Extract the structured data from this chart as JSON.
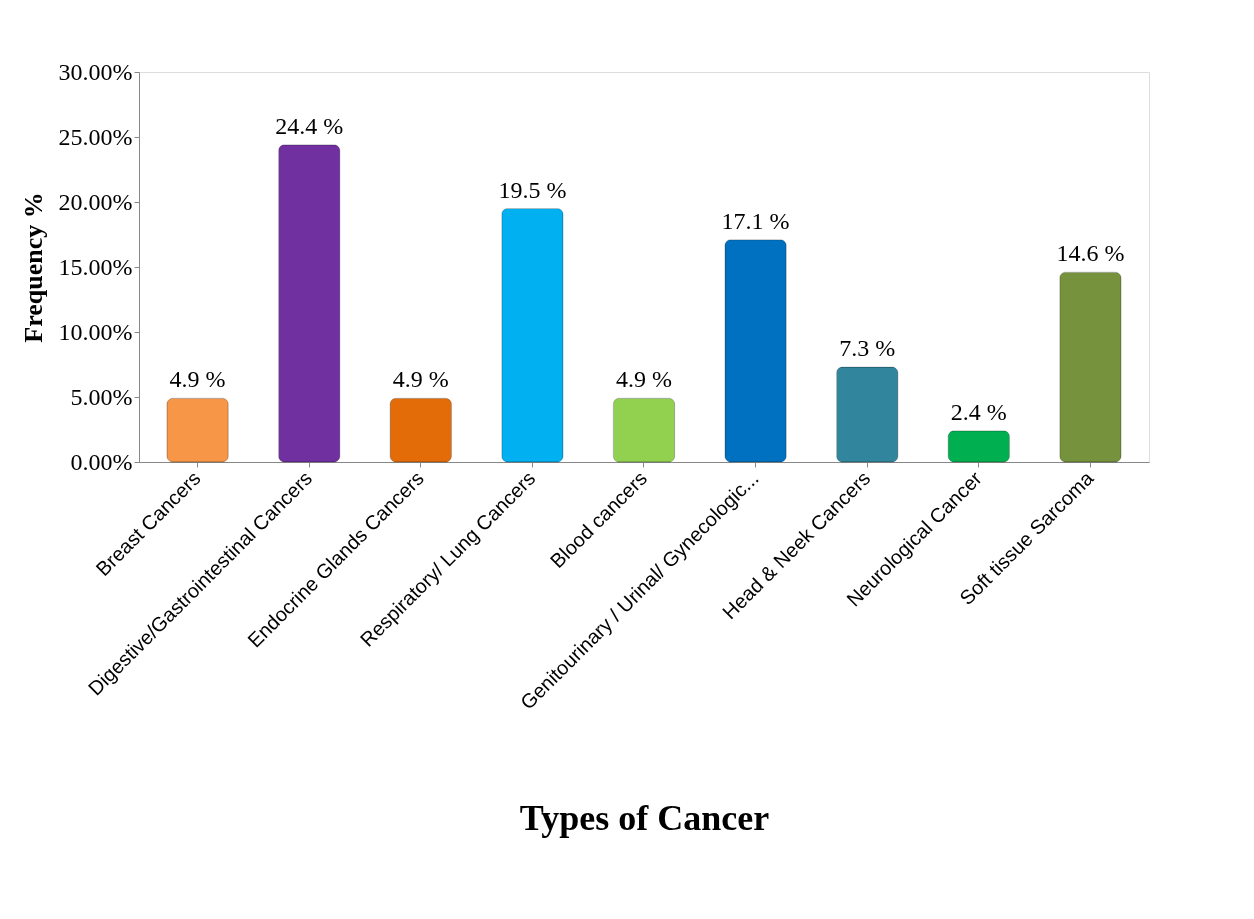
{
  "chart_data": {
    "type": "bar",
    "xlabel": "Types of Cancer",
    "ylabel": "Frequency %",
    "categories": [
      "Breast Cancers",
      "Digestive/Gastrointestinal Cancers",
      "Endocrine Glands Cancers",
      "Respiratory/ Lung Cancers",
      "Blood cancers",
      "Genitourinary / Urinal/ Gynecologic...",
      "Head & Neek Cancers",
      "Neurological Cancer",
      "Soft tissue Sarcoma"
    ],
    "values": [
      4.9,
      24.4,
      4.9,
      19.5,
      4.9,
      17.1,
      7.3,
      2.4,
      14.6
    ],
    "value_labels": [
      "4.9 %",
      "24.4 %",
      "4.9 %",
      "19.5 %",
      "4.9 %",
      "17.1 %",
      "7.3 %",
      "2.4 %",
      "14.6 %"
    ],
    "colors": [
      "#f79646",
      "#7030a0",
      "#e36c09",
      "#00b0f0",
      "#92d050",
      "#0070c0",
      "#31859c",
      "#00b050",
      "#76923c"
    ],
    "ylim": [
      0,
      30
    ],
    "yticks": [
      {
        "value": 0,
        "label": "0.00%"
      },
      {
        "value": 5,
        "label": "5.00%"
      },
      {
        "value": 10,
        "label": "10.00%"
      },
      {
        "value": 15,
        "label": "15.00%"
      },
      {
        "value": 20,
        "label": "20.00%"
      },
      {
        "value": 25,
        "label": "25.00%"
      },
      {
        "value": 30,
        "label": "30.00%"
      }
    ],
    "grid": false,
    "legend": false
  }
}
